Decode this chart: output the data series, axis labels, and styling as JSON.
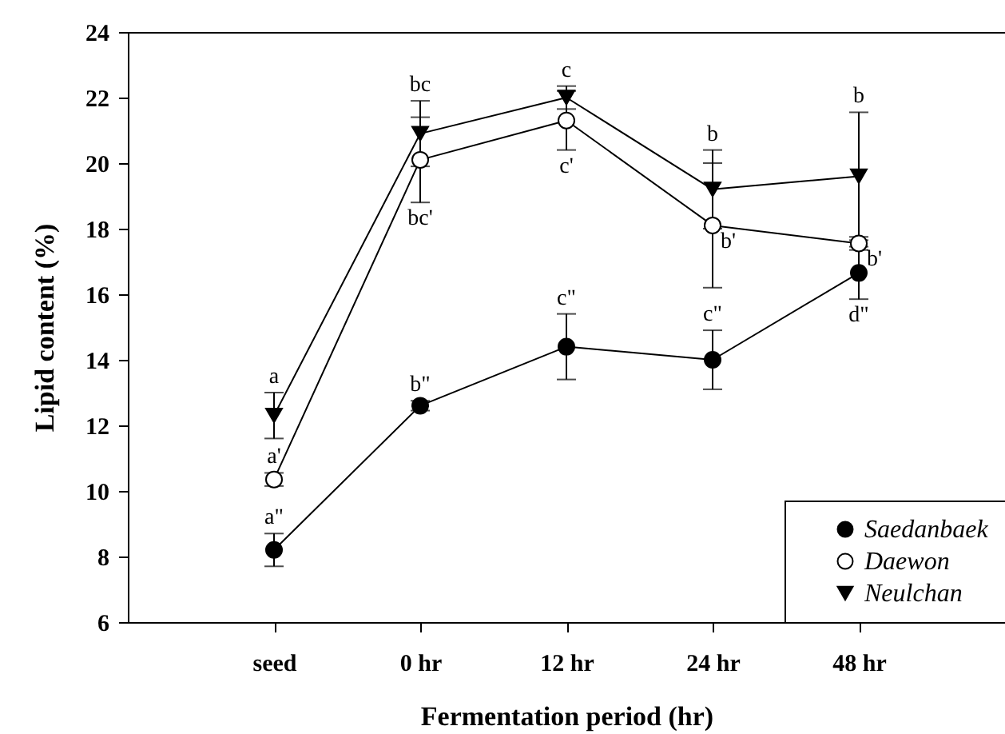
{
  "chart_data": {
    "type": "line",
    "xlabel": "Fermentation period (hr)",
    "ylabel": "Lipid content (%)",
    "categories": [
      "seed",
      "0 hr",
      "12 hr",
      "24 hr",
      "48 hr"
    ],
    "ylim": [
      6,
      24
    ],
    "yticks": [
      6,
      8,
      10,
      12,
      14,
      16,
      18,
      20,
      22,
      24
    ],
    "legend": "bottom right",
    "marker": "circle",
    "series": [
      {
        "name": "Saedanbaek",
        "color": "#000000",
        "marker": "circle",
        "values": [
          8.2,
          12.6,
          14.4,
          14.0,
          16.65
        ],
        "errors": [
          0.5,
          0.15,
          1.0,
          0.9,
          0.8
        ]
      },
      {
        "name": "Daewon",
        "color": "#ffffff",
        "marker": "circle",
        "values": [
          10.35,
          20.1,
          21.3,
          18.1,
          17.55
        ],
        "errors": [
          0.2,
          1.3,
          0.9,
          1.9,
          0.2
        ]
      },
      {
        "name": "Neulchan",
        "color": "#000000",
        "marker": "triangle",
        "values": [
          12.3,
          20.9,
          22.0,
          19.2,
          19.6
        ],
        "errors": [
          0.7,
          1.0,
          0.35,
          1.2,
          1.95
        ]
      }
    ],
    "annotations": [
      {
        "text": "a",
        "x": "seed",
        "y": 13.0
      },
      {
        "text": "bc",
        "x": "0 hr",
        "y": 21.9
      },
      {
        "text": "c",
        "x": "12 hr",
        "y": 22.35
      },
      {
        "text": "b",
        "x": "24 hr",
        "y": 20.4
      },
      {
        "text": "b",
        "x": "48 hr",
        "y": 21.55
      },
      {
        "text": "a'",
        "x": "seed",
        "y": 10.55
      },
      {
        "text": "bc'",
        "x": "0 hr",
        "y": 18.8
      },
      {
        "text": "c'",
        "x": "12 hr",
        "y": 20.4
      },
      {
        "text": "b'",
        "x": "24 hr",
        "y": 18.1
      },
      {
        "text": "b'",
        "x": "48 hr",
        "y": 17.55
      },
      {
        "text": "a\"",
        "x": "seed",
        "y": 8.7
      },
      {
        "text": "b\"",
        "x": "0 hr",
        "y": 12.75
      },
      {
        "text": "c\"",
        "x": "12 hr",
        "y": 15.4
      },
      {
        "text": "c\"",
        "x": "24 hr",
        "y": 14.9
      },
      {
        "text": "d\"",
        "x": "48 hr",
        "y": 15.85
      }
    ]
  }
}
